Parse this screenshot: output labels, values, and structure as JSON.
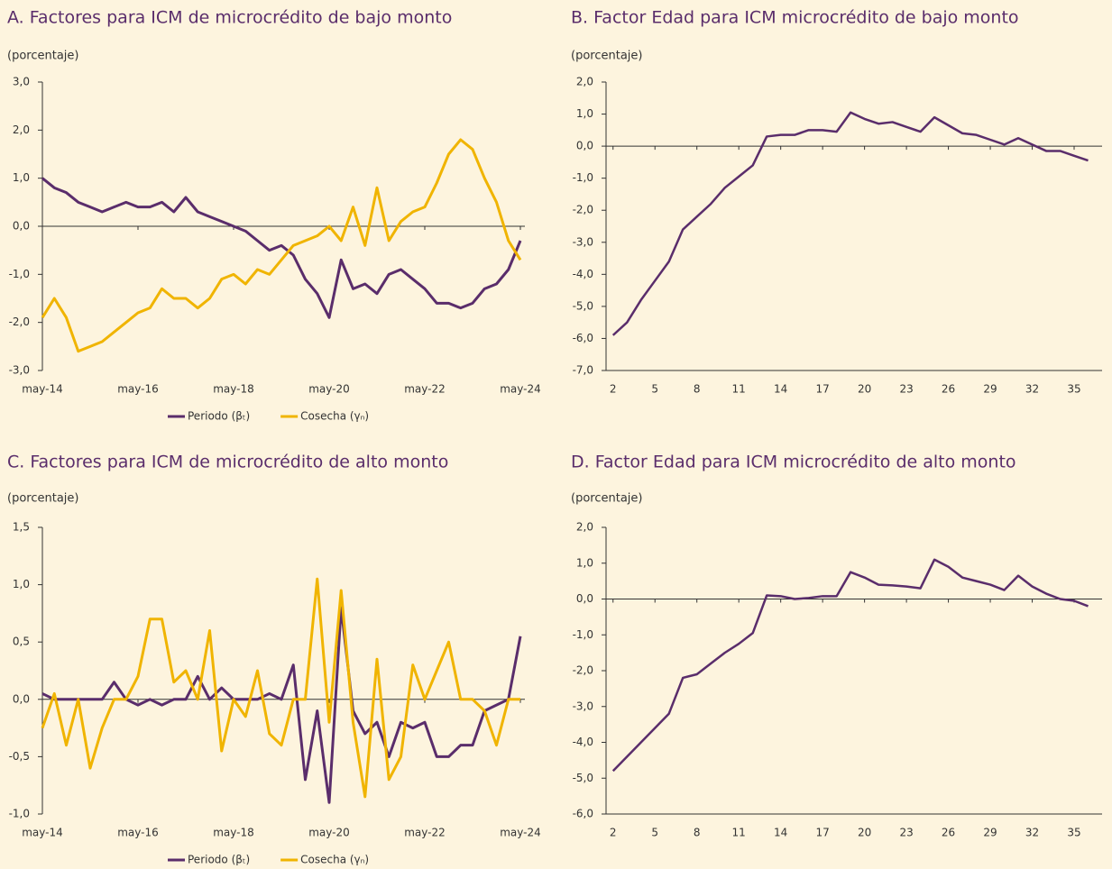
{
  "chart_data": [
    {
      "type": "line",
      "title": "A. Factores para ICM de microcrédito de bajo monto",
      "subtitle": "(porcentaje)",
      "categories": [
        "may-14",
        null,
        null,
        null,
        null,
        null,
        null,
        null,
        "may-16",
        null,
        null,
        null,
        null,
        null,
        null,
        null,
        "may-18",
        null,
        null,
        null,
        null,
        null,
        null,
        null,
        "may-20",
        null,
        null,
        null,
        null,
        null,
        null,
        null,
        "may-22",
        null,
        null,
        null,
        null,
        null,
        null,
        null,
        "may-24"
      ],
      "series": [
        {
          "name": "Periodo (βₜ)",
          "color": "#5a2d6b",
          "values": [
            1.0,
            0.8,
            0.7,
            0.5,
            0.4,
            0.3,
            0.4,
            0.5,
            0.4,
            0.4,
            0.5,
            0.3,
            0.6,
            0.3,
            0.2,
            0.1,
            0.0,
            -0.1,
            -0.3,
            -0.5,
            -0.4,
            -0.6,
            -1.1,
            -1.4,
            -1.9,
            -0.7,
            -1.3,
            -1.2,
            -1.4,
            -1.0,
            -0.9,
            -1.1,
            -1.3,
            -1.6,
            -1.6,
            -1.7,
            -1.6,
            -1.3,
            -1.2,
            -0.9,
            -0.3
          ]
        },
        {
          "name": "Cosecha (γₙ)",
          "color": "#f0b400",
          "values": [
            -1.9,
            -1.5,
            -1.9,
            -2.6,
            -2.5,
            -2.4,
            -2.2,
            -2.0,
            -1.8,
            -1.7,
            -1.3,
            -1.5,
            -1.5,
            -1.7,
            -1.5,
            -1.1,
            -1.0,
            -1.2,
            -0.9,
            -1.0,
            -0.7,
            -0.4,
            -0.3,
            -0.2,
            0.0,
            -0.3,
            0.4,
            -0.4,
            0.8,
            -0.3,
            0.1,
            0.3,
            0.4,
            0.9,
            1.5,
            1.8,
            1.6,
            1.0,
            0.5,
            -0.3,
            -0.7
          ]
        }
      ],
      "ylim": [
        -3,
        3
      ],
      "yticks": [
        {
          "value": -3,
          "label": "-3,0"
        },
        {
          "value": -2,
          "label": "-2,0"
        },
        {
          "value": -1,
          "label": "-1,0"
        },
        {
          "value": 0,
          "label": "0,0"
        },
        {
          "value": 1,
          "label": "1,0"
        },
        {
          "value": 2,
          "label": "2,0"
        },
        {
          "value": 3,
          "label": "3,0"
        }
      ],
      "legend": "bottom"
    },
    {
      "type": "line",
      "title": "B. Factor Edad para ICM microcrédito de bajo monto",
      "subtitle": "(porcentaje)",
      "x": [
        2,
        3,
        4,
        5,
        6,
        7,
        8,
        9,
        10,
        11,
        12,
        13,
        14,
        15,
        16,
        17,
        18,
        19,
        20,
        21,
        22,
        23,
        24,
        25,
        26,
        27,
        28,
        29,
        30,
        31,
        32,
        33,
        34,
        35,
        36
      ],
      "values": [
        -5.9,
        -5.5,
        -4.8,
        -4.2,
        -3.6,
        -2.6,
        -2.2,
        -1.8,
        -1.3,
        -0.95,
        -0.6,
        0.3,
        0.35,
        0.35,
        0.5,
        0.5,
        0.45,
        1.05,
        0.85,
        0.7,
        0.75,
        0.6,
        0.45,
        0.9,
        0.65,
        0.4,
        0.35,
        0.2,
        0.05,
        0.25,
        0.05,
        -0.15,
        -0.15,
        -0.3,
        -0.45
      ],
      "color": "#5a2d6b",
      "xlim": [
        1.5,
        37
      ],
      "xticks": [
        2,
        5,
        8,
        11,
        14,
        17,
        20,
        23,
        26,
        29,
        32,
        35
      ],
      "ylim": [
        -7,
        2
      ],
      "yticks": [
        {
          "value": -7,
          "label": "-7,0"
        },
        {
          "value": -6,
          "label": "-6,0"
        },
        {
          "value": -5,
          "label": "-5,0"
        },
        {
          "value": -4,
          "label": "-4,0"
        },
        {
          "value": -3,
          "label": "-3,0"
        },
        {
          "value": -2,
          "label": "-2,0"
        },
        {
          "value": -1,
          "label": "-1,0"
        },
        {
          "value": 0,
          "label": "0,0"
        },
        {
          "value": 1,
          "label": "1,0"
        },
        {
          "value": 2,
          "label": "2,0"
        }
      ]
    },
    {
      "type": "line",
      "title": "C. Factores para ICM de microcrédito de alto monto",
      "subtitle": "(porcentaje)",
      "categories": [
        "may-14",
        null,
        null,
        null,
        null,
        null,
        null,
        null,
        "may-16",
        null,
        null,
        null,
        null,
        null,
        null,
        null,
        "may-18",
        null,
        null,
        null,
        null,
        null,
        null,
        null,
        "may-20",
        null,
        null,
        null,
        null,
        null,
        null,
        null,
        "may-22",
        null,
        null,
        null,
        null,
        null,
        null,
        null,
        "may-24"
      ],
      "series": [
        {
          "name": "Periodo (βₜ)",
          "color": "#5a2d6b",
          "values": [
            0.05,
            0.0,
            0.0,
            0.0,
            0.0,
            0.0,
            0.15,
            0.0,
            -0.05,
            0.0,
            -0.05,
            0.0,
            0.0,
            0.2,
            0.0,
            0.1,
            0.0,
            0.0,
            0.0,
            0.05,
            0.0,
            0.3,
            -0.7,
            -0.1,
            -0.9,
            0.8,
            -0.1,
            -0.3,
            -0.2,
            -0.5,
            -0.2,
            -0.25,
            -0.2,
            -0.5,
            -0.5,
            -0.4,
            -0.4,
            -0.1,
            -0.05,
            0.0,
            0.55
          ]
        },
        {
          "name": "Cosecha (γₙ)",
          "color": "#f0b400",
          "values": [
            -0.25,
            0.05,
            -0.4,
            0.0,
            -0.6,
            -0.25,
            0.0,
            0.0,
            0.2,
            0.7,
            0.7,
            0.15,
            0.25,
            0.0,
            0.6,
            -0.45,
            0.0,
            -0.15,
            0.25,
            -0.3,
            -0.4,
            0.0,
            0.0,
            1.05,
            -0.2,
            0.95,
            -0.2,
            -0.85,
            0.35,
            -0.7,
            -0.5,
            0.3,
            0.0,
            0.25,
            0.5,
            0.0,
            0.0,
            -0.1,
            -0.4,
            0.0,
            0.0
          ]
        }
      ],
      "ylim": [
        -1,
        1.5
      ],
      "yticks": [
        {
          "value": -1,
          "label": "-1,0"
        },
        {
          "value": -0.5,
          "label": "-0,5"
        },
        {
          "value": 0,
          "label": "0,0"
        },
        {
          "value": 0.5,
          "label": "0,5"
        },
        {
          "value": 1,
          "label": "1,0"
        },
        {
          "value": 1.5,
          "label": "1,5"
        }
      ],
      "legend": "bottom"
    },
    {
      "type": "line",
      "title": "D. Factor Edad para ICM microcrédito de alto monto",
      "subtitle": "(porcentaje)",
      "x": [
        2,
        3,
        4,
        5,
        6,
        7,
        8,
        9,
        10,
        11,
        12,
        13,
        14,
        15,
        16,
        17,
        18,
        19,
        20,
        21,
        22,
        23,
        24,
        25,
        26,
        27,
        28,
        29,
        30,
        31,
        32,
        33,
        34,
        35,
        36
      ],
      "values": [
        -4.8,
        -4.4,
        -4.0,
        -3.6,
        -3.2,
        -2.2,
        -2.1,
        -1.8,
        -1.5,
        -1.25,
        -0.95,
        0.1,
        0.08,
        0.0,
        0.03,
        0.08,
        0.08,
        0.75,
        0.6,
        0.4,
        0.38,
        0.35,
        0.3,
        1.1,
        0.9,
        0.6,
        0.5,
        0.4,
        0.25,
        0.65,
        0.35,
        0.15,
        0.0,
        -0.05,
        -0.2
      ],
      "color": "#5a2d6b",
      "xlim": [
        1.5,
        37
      ],
      "xticks": [
        2,
        5,
        8,
        11,
        14,
        17,
        20,
        23,
        26,
        29,
        32,
        35
      ],
      "ylim": [
        -6,
        2
      ],
      "yticks": [
        {
          "value": -6,
          "label": "-6,0"
        },
        {
          "value": -5,
          "label": "-5,0"
        },
        {
          "value": -4,
          "label": "-4,0"
        },
        {
          "value": -3,
          "label": "-3,0"
        },
        {
          "value": -2,
          "label": "-2,0"
        },
        {
          "value": -1,
          "label": "-1,0"
        },
        {
          "value": 0,
          "label": "0,0"
        },
        {
          "value": 1,
          "label": "1,0"
        },
        {
          "value": 2,
          "label": "2,0"
        }
      ]
    }
  ]
}
